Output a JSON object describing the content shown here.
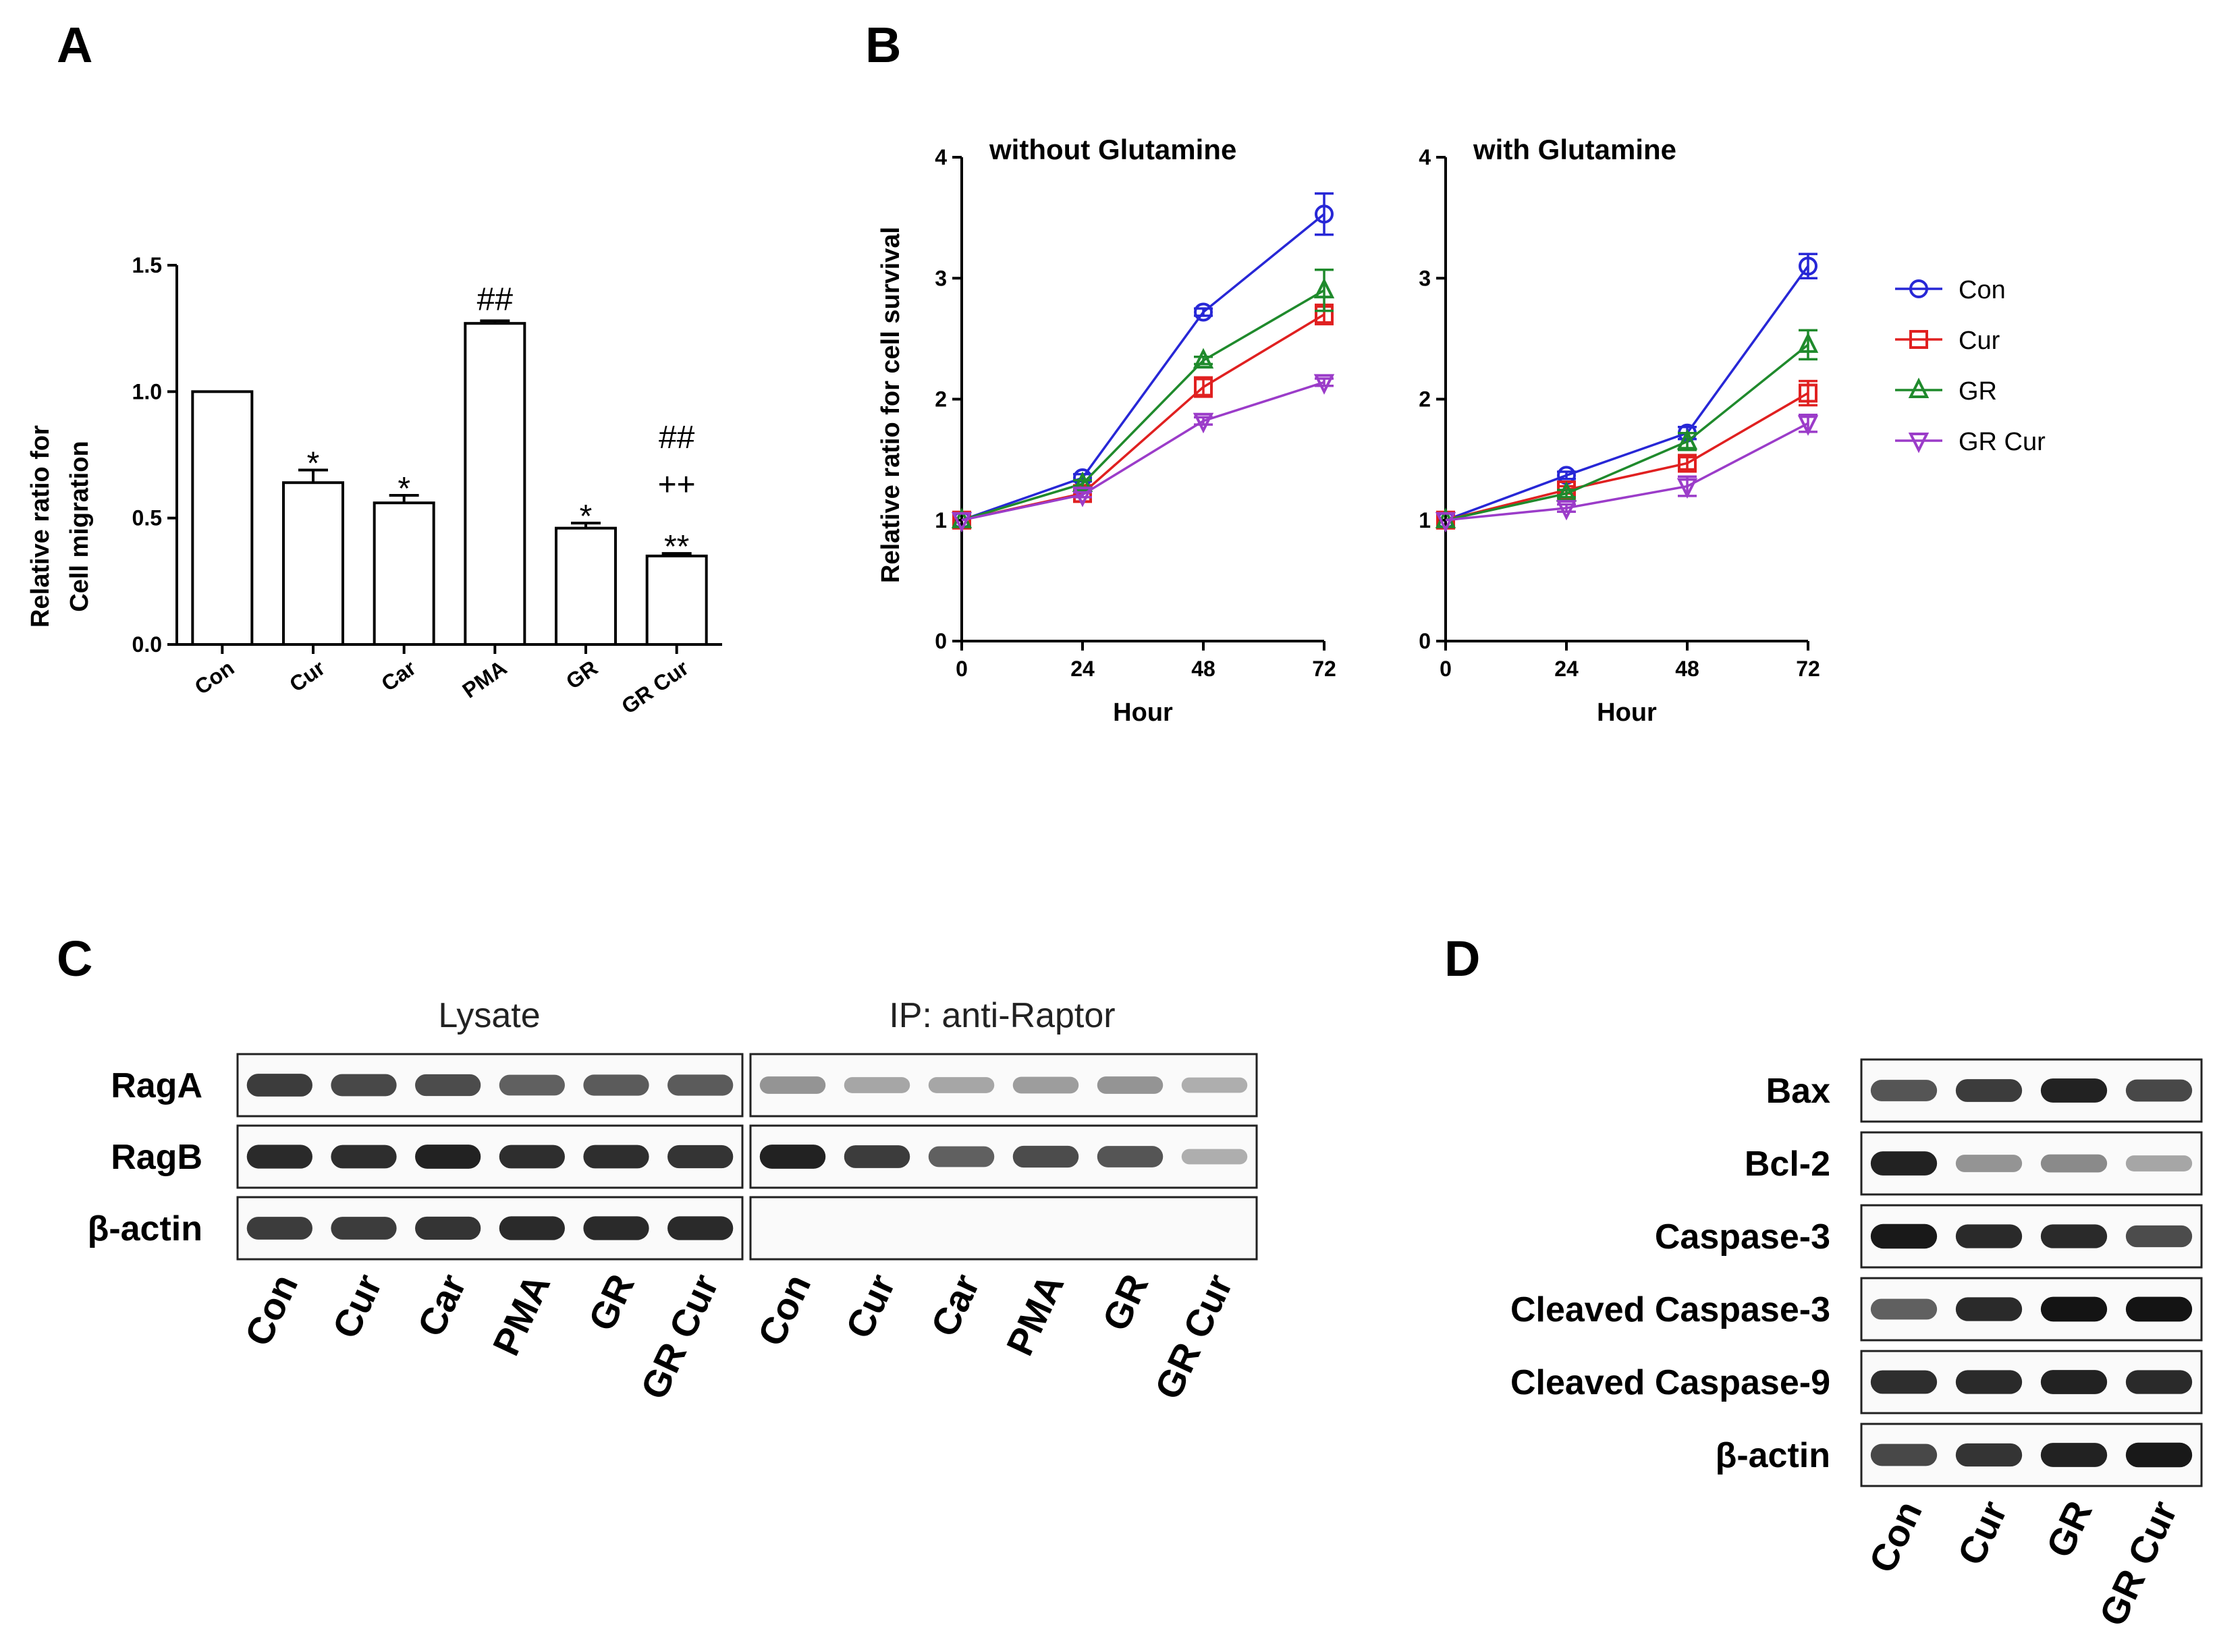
{
  "panels": {
    "A": "A",
    "B": "B",
    "C": "C",
    "D": "D"
  },
  "chart_data": [
    {
      "type": "bar",
      "panel": "A",
      "categories": [
        "Con",
        "Cur",
        "Car",
        "PMA",
        "GR",
        "GR Cur"
      ],
      "values": [
        1.0,
        0.64,
        0.56,
        1.27,
        0.46,
        0.35
      ],
      "errors": [
        0.0,
        0.05,
        0.03,
        0.01,
        0.02,
        0.01
      ],
      "significance": [
        "",
        "*",
        "*",
        "##",
        "*",
        "**|++|##"
      ],
      "ylabel_line1": "Relative ratio for",
      "ylabel_line2": "Cell migration",
      "ylim": [
        0,
        1.5
      ],
      "yticks": [
        "0.0",
        "0.5",
        "1.0",
        "1.5"
      ],
      "ytick_values": [
        0,
        0.5,
        1.0,
        1.5
      ]
    },
    {
      "type": "line",
      "panel": "B",
      "title": "without Glutamine",
      "xlabel": "Hour",
      "ylabel": "Relative ratio for cell survival",
      "x": [
        0,
        24,
        48,
        72
      ],
      "xticks": [
        "0",
        "24",
        "48",
        "72"
      ],
      "ylim": [
        0,
        4
      ],
      "yticks": [
        "0",
        "1",
        "2",
        "3",
        "4"
      ],
      "series": [
        {
          "name": "Con",
          "values": [
            1.0,
            1.35,
            2.72,
            3.53
          ],
          "errors": [
            0,
            0.03,
            0.03,
            0.17
          ],
          "color": "#2727d6",
          "marker": "circle"
        },
        {
          "name": "Cur",
          "values": [
            1.0,
            1.22,
            2.1,
            2.7
          ],
          "errors": [
            0,
            0.03,
            0.08,
            0.08
          ],
          "color": "#e02020",
          "marker": "square"
        },
        {
          "name": "GR",
          "values": [
            1.0,
            1.3,
            2.32,
            2.9
          ],
          "errors": [
            0,
            0.03,
            0.03,
            0.17
          ],
          "color": "#1f8a2c",
          "marker": "triangle-up"
        },
        {
          "name": "GR Cur",
          "values": [
            1.0,
            1.21,
            1.82,
            2.14
          ],
          "errors": [
            0,
            0.02,
            0.03,
            0.03
          ],
          "color": "#9b3cc9",
          "marker": "triangle-down"
        }
      ]
    },
    {
      "type": "line",
      "panel": "B",
      "title": "with Glutamine",
      "xlabel": "Hour",
      "ylabel": "",
      "x": [
        0,
        24,
        48,
        72
      ],
      "xticks": [
        "0",
        "24",
        "48",
        "72"
      ],
      "ylim": [
        0,
        4
      ],
      "yticks": [
        "0",
        "1",
        "2",
        "3",
        "4"
      ],
      "series": [
        {
          "name": "Con",
          "values": [
            1.0,
            1.37,
            1.72,
            3.1
          ],
          "errors": [
            0,
            0.03,
            0.05,
            0.1
          ],
          "color": "#2727d6",
          "marker": "circle"
        },
        {
          "name": "Cur",
          "values": [
            1.0,
            1.25,
            1.47,
            2.05
          ],
          "errors": [
            0,
            0.03,
            0.05,
            0.1
          ],
          "color": "#e02020",
          "marker": "square"
        },
        {
          "name": "GR",
          "values": [
            1.0,
            1.22,
            1.65,
            2.45
          ],
          "errors": [
            0,
            0.03,
            0.07,
            0.12
          ],
          "color": "#1f8a2c",
          "marker": "triangle-up"
        },
        {
          "name": "GR Cur",
          "values": [
            1.0,
            1.1,
            1.28,
            1.8
          ],
          "errors": [
            0,
            0.03,
            0.08,
            0.07
          ],
          "color": "#9b3cc9",
          "marker": "triangle-down"
        }
      ]
    }
  ],
  "legend": [
    "Con",
    "Cur",
    "GR",
    "GR Cur"
  ],
  "blots_c": {
    "groups": [
      "Lysate",
      "IP: anti-Raptor"
    ],
    "rows": [
      "RagA",
      "RagB",
      "β-actin"
    ],
    "lanes": [
      "Con",
      "Cur",
      "Car",
      "PMA",
      "GR",
      "GR Cur"
    ],
    "lysate_intensity": [
      [
        0.85,
        0.8,
        0.78,
        0.7,
        0.72,
        0.72
      ],
      [
        0.92,
        0.9,
        0.95,
        0.9,
        0.9,
        0.88
      ],
      [
        0.85,
        0.85,
        0.88,
        0.92,
        0.92,
        0.92
      ]
    ],
    "ip_intensity": [
      [
        0.45,
        0.35,
        0.35,
        0.4,
        0.45,
        0.3
      ],
      [
        0.95,
        0.85,
        0.7,
        0.78,
        0.75,
        0.3
      ],
      [
        0,
        0,
        0,
        0,
        0,
        0
      ]
    ]
  },
  "blots_d": {
    "rows": [
      "Bax",
      "Bcl-2",
      "Caspase-3",
      "Cleaved Caspase-3",
      "Cleaved Caspase-9",
      "β-actin"
    ],
    "lanes": [
      "Con",
      "Cur",
      "GR",
      "GR Cur"
    ],
    "intensity": [
      [
        0.75,
        0.85,
        0.95,
        0.8
      ],
      [
        0.95,
        0.45,
        0.5,
        0.35
      ],
      [
        0.98,
        0.92,
        0.92,
        0.78
      ],
      [
        0.7,
        0.92,
        1.0,
        1.0
      ],
      [
        0.9,
        0.92,
        0.95,
        0.92
      ],
      [
        0.8,
        0.88,
        0.95,
        0.98
      ]
    ]
  }
}
